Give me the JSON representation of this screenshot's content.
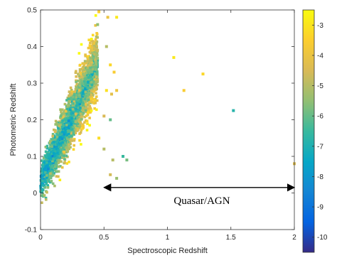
{
  "chart_data": {
    "type": "scatter",
    "title": "",
    "xlabel": "Spectroscopic Redshift",
    "ylabel": "Photometric Redshift",
    "xlim": [
      0,
      2
    ],
    "ylim": [
      -0.1,
      0.5
    ],
    "xticks": [
      "0",
      "0.5",
      "1",
      "1.5",
      "2"
    ],
    "yticks": [
      "-0.1",
      "0",
      "0.1",
      "0.2",
      "0.3",
      "0.4",
      "0.5"
    ],
    "grid": false,
    "colorbar": {
      "range": [
        -10.5,
        -2.5
      ],
      "ticks": [
        "-3",
        "-4",
        "-5",
        "-6",
        "-7",
        "-8",
        "-9",
        "-10"
      ],
      "colormap": "parula"
    },
    "annotation": {
      "text": "Quasar/AGN",
      "arrow_from_x": 0.5,
      "arrow_to_x": 2.0,
      "arrow_y": 0.015
    },
    "dense_cloud": {
      "description_of_distribution": "points follow z_phot ≈ 0.72·z_spec + 0.03 over z_spec 0–0.45",
      "x_range": [
        0.0,
        0.45
      ],
      "slope": 0.72,
      "intercept": 0.03,
      "scatter": 0.035
    },
    "outliers": [
      {
        "x": 0.46,
        "y": 0.495,
        "c": -3.5
      },
      {
        "x": 0.53,
        "y": 0.48,
        "c": -4.0
      },
      {
        "x": 0.45,
        "y": 0.46,
        "c": -5.5
      },
      {
        "x": 0.6,
        "y": 0.48,
        "c": -2.9
      },
      {
        "x": 0.52,
        "y": 0.4,
        "c": -5.0
      },
      {
        "x": 0.55,
        "y": 0.35,
        "c": -3.3
      },
      {
        "x": 0.58,
        "y": 0.33,
        "c": -3.6
      },
      {
        "x": 0.52,
        "y": 0.28,
        "c": -3.1
      },
      {
        "x": 0.56,
        "y": 0.27,
        "c": -4.2
      },
      {
        "x": 0.6,
        "y": 0.28,
        "c": -3.9
      },
      {
        "x": 0.5,
        "y": 0.21,
        "c": -4.5
      },
      {
        "x": 0.55,
        "y": 0.2,
        "c": -6.0
      },
      {
        "x": 0.46,
        "y": 0.15,
        "c": -3.2
      },
      {
        "x": 0.5,
        "y": 0.12,
        "c": -5.0
      },
      {
        "x": 0.57,
        "y": 0.09,
        "c": -5.0
      },
      {
        "x": 0.65,
        "y": 0.1,
        "c": -6.5
      },
      {
        "x": 0.68,
        "y": 0.09,
        "c": -5.8
      },
      {
        "x": 0.55,
        "y": 0.05,
        "c": -4.6
      },
      {
        "x": 0.6,
        "y": 0.04,
        "c": -5.4
      },
      {
        "x": 1.05,
        "y": 0.37,
        "c": -2.9
      },
      {
        "x": 1.28,
        "y": 0.325,
        "c": -3.3
      },
      {
        "x": 1.13,
        "y": 0.28,
        "c": -3.6
      },
      {
        "x": 1.52,
        "y": 0.225,
        "c": -6.8
      },
      {
        "x": 2.0,
        "y": 0.08,
        "c": -4.4
      }
    ]
  }
}
